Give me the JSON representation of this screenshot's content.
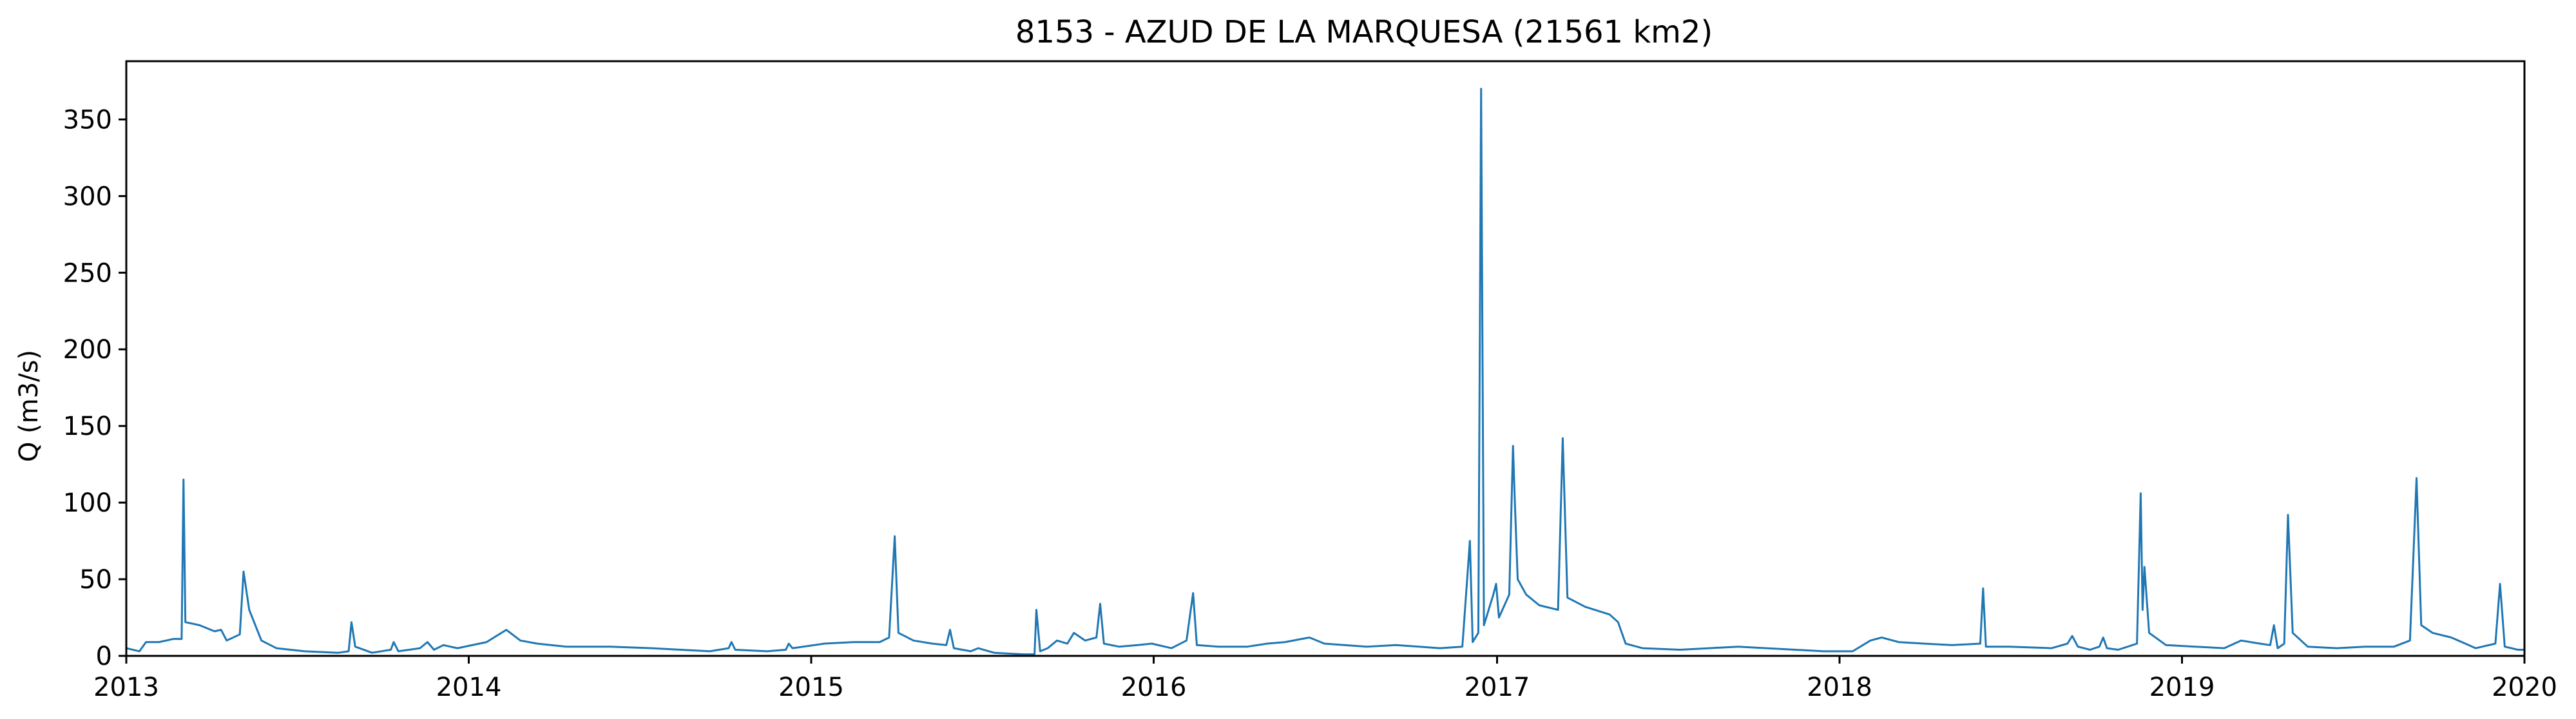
{
  "chart_data": {
    "type": "line",
    "title": "8153 - AZUD DE LA MARQUESA (21561 km2)",
    "xlabel": "",
    "ylabel": "Q (m3/s)",
    "xlim": [
      "2013-01-01",
      "2020-01-01"
    ],
    "ylim": [
      0,
      388
    ],
    "x_ticks": [
      "2013",
      "2014",
      "2015",
      "2016",
      "2017",
      "2018",
      "2019",
      "2020"
    ],
    "y_ticks": [
      0,
      50,
      100,
      150,
      200,
      250,
      300,
      350
    ],
    "grid": false,
    "legend": "none",
    "series": [
      {
        "color": "#1f77b4",
        "points": [
          [
            "2013-01-01",
            5
          ],
          [
            "2013-01-15",
            3
          ],
          [
            "2013-01-22",
            9
          ],
          [
            "2013-02-05",
            9
          ],
          [
            "2013-02-20",
            11
          ],
          [
            "2013-03-01",
            11
          ],
          [
            "2013-03-03",
            115
          ],
          [
            "2013-03-05",
            22
          ],
          [
            "2013-03-20",
            20
          ],
          [
            "2013-04-05",
            16
          ],
          [
            "2013-04-12",
            17
          ],
          [
            "2013-04-18",
            10
          ],
          [
            "2013-05-02",
            14
          ],
          [
            "2013-05-06",
            55
          ],
          [
            "2013-05-12",
            30
          ],
          [
            "2013-05-25",
            10
          ],
          [
            "2013-06-10",
            5
          ],
          [
            "2013-07-10",
            3
          ],
          [
            "2013-08-15",
            2
          ],
          [
            "2013-08-26",
            3
          ],
          [
            "2013-08-29",
            22
          ],
          [
            "2013-09-02",
            6
          ],
          [
            "2013-09-20",
            2
          ],
          [
            "2013-10-10",
            4
          ],
          [
            "2013-10-13",
            9
          ],
          [
            "2013-10-18",
            3
          ],
          [
            "2013-11-10",
            5
          ],
          [
            "2013-11-18",
            9
          ],
          [
            "2013-11-25",
            4
          ],
          [
            "2013-12-05",
            7
          ],
          [
            "2013-12-20",
            5
          ],
          [
            "2014-01-20",
            9
          ],
          [
            "2014-02-10",
            17
          ],
          [
            "2014-02-25",
            10
          ],
          [
            "2014-03-15",
            8
          ],
          [
            "2014-04-15",
            6
          ],
          [
            "2014-06-01",
            6
          ],
          [
            "2014-07-15",
            5
          ],
          [
            "2014-08-15",
            4
          ],
          [
            "2014-09-15",
            3
          ],
          [
            "2014-10-05",
            5
          ],
          [
            "2014-10-08",
            9
          ],
          [
            "2014-10-12",
            4
          ],
          [
            "2014-11-15",
            3
          ],
          [
            "2014-12-05",
            4
          ],
          [
            "2014-12-08",
            8
          ],
          [
            "2014-12-12",
            5
          ],
          [
            "2015-01-15",
            8
          ],
          [
            "2015-02-15",
            9
          ],
          [
            "2015-03-15",
            9
          ],
          [
            "2015-03-25",
            12
          ],
          [
            "2015-03-31",
            78
          ],
          [
            "2015-04-04",
            15
          ],
          [
            "2015-04-20",
            10
          ],
          [
            "2015-05-10",
            8
          ],
          [
            "2015-05-25",
            7
          ],
          [
            "2015-05-29",
            17
          ],
          [
            "2015-06-02",
            5
          ],
          [
            "2015-06-20",
            3
          ],
          [
            "2015-06-28",
            5
          ],
          [
            "2015-07-15",
            2
          ],
          [
            "2015-08-15",
            1
          ],
          [
            "2015-08-27",
            1
          ],
          [
            "2015-08-29",
            30
          ],
          [
            "2015-09-02",
            3
          ],
          [
            "2015-09-10",
            5
          ],
          [
            "2015-09-20",
            10
          ],
          [
            "2015-10-01",
            8
          ],
          [
            "2015-10-08",
            15
          ],
          [
            "2015-10-20",
            10
          ],
          [
            "2015-11-01",
            12
          ],
          [
            "2015-11-05",
            34
          ],
          [
            "2015-11-09",
            8
          ],
          [
            "2015-11-25",
            6
          ],
          [
            "2015-12-15",
            7
          ],
          [
            "2015-12-30",
            8
          ],
          [
            "2016-01-20",
            5
          ],
          [
            "2016-02-05",
            10
          ],
          [
            "2016-02-12",
            41
          ],
          [
            "2016-02-16",
            7
          ],
          [
            "2016-03-10",
            6
          ],
          [
            "2016-04-10",
            6
          ],
          [
            "2016-05-01",
            8
          ],
          [
            "2016-05-20",
            9
          ],
          [
            "2016-06-15",
            12
          ],
          [
            "2016-07-01",
            8
          ],
          [
            "2016-08-15",
            6
          ],
          [
            "2016-09-15",
            7
          ],
          [
            "2016-10-10",
            6
          ],
          [
            "2016-11-01",
            5
          ],
          [
            "2016-11-25",
            6
          ],
          [
            "2016-12-03",
            75
          ],
          [
            "2016-12-06",
            9
          ],
          [
            "2016-12-12",
            15
          ],
          [
            "2016-12-15",
            370
          ],
          [
            "2016-12-18",
            20
          ],
          [
            "2016-12-28",
            40
          ],
          [
            "2016-12-31",
            47
          ],
          [
            "2017-01-03",
            25
          ],
          [
            "2017-01-14",
            40
          ],
          [
            "2017-01-18",
            137
          ],
          [
            "2017-01-20",
            100
          ],
          [
            "2017-01-23",
            50
          ],
          [
            "2017-02-01",
            40
          ],
          [
            "2017-02-15",
            33
          ],
          [
            "2017-03-07",
            30
          ],
          [
            "2017-03-12",
            142
          ],
          [
            "2017-03-17",
            38
          ],
          [
            "2017-04-05",
            32
          ],
          [
            "2017-05-01",
            27
          ],
          [
            "2017-05-10",
            22
          ],
          [
            "2017-05-18",
            8
          ],
          [
            "2017-06-05",
            5
          ],
          [
            "2017-07-15",
            4
          ],
          [
            "2017-08-15",
            5
          ],
          [
            "2017-09-15",
            6
          ],
          [
            "2017-10-15",
            5
          ],
          [
            "2017-11-15",
            4
          ],
          [
            "2017-12-15",
            3
          ],
          [
            "2018-01-15",
            3
          ],
          [
            "2018-02-03",
            10
          ],
          [
            "2018-02-15",
            12
          ],
          [
            "2018-03-05",
            9
          ],
          [
            "2018-04-01",
            8
          ],
          [
            "2018-05-01",
            7
          ],
          [
            "2018-05-31",
            8
          ],
          [
            "2018-06-03",
            44
          ],
          [
            "2018-06-06",
            6
          ],
          [
            "2018-07-01",
            6
          ],
          [
            "2018-08-15",
            5
          ],
          [
            "2018-09-01",
            8
          ],
          [
            "2018-09-06",
            13
          ],
          [
            "2018-09-12",
            6
          ],
          [
            "2018-09-25",
            4
          ],
          [
            "2018-10-05",
            6
          ],
          [
            "2018-10-09",
            12
          ],
          [
            "2018-10-13",
            5
          ],
          [
            "2018-10-25",
            4
          ],
          [
            "2018-11-14",
            8
          ],
          [
            "2018-11-18",
            106
          ],
          [
            "2018-11-20",
            30
          ],
          [
            "2018-11-22",
            58
          ],
          [
            "2018-11-27",
            15
          ],
          [
            "2018-12-15",
            7
          ],
          [
            "2019-01-15",
            6
          ],
          [
            "2019-02-15",
            5
          ],
          [
            "2019-03-05",
            10
          ],
          [
            "2019-03-25",
            8
          ],
          [
            "2019-04-05",
            7
          ],
          [
            "2019-04-09",
            20
          ],
          [
            "2019-04-13",
            5
          ],
          [
            "2019-04-20",
            8
          ],
          [
            "2019-04-24",
            92
          ],
          [
            "2019-04-29",
            15
          ],
          [
            "2019-05-15",
            6
          ],
          [
            "2019-06-15",
            5
          ],
          [
            "2019-07-15",
            6
          ],
          [
            "2019-08-15",
            6
          ],
          [
            "2019-09-01",
            10
          ],
          [
            "2019-09-08",
            116
          ],
          [
            "2019-09-13",
            20
          ],
          [
            "2019-09-25",
            15
          ],
          [
            "2019-10-15",
            12
          ],
          [
            "2019-10-30",
            8
          ],
          [
            "2019-11-10",
            5
          ],
          [
            "2019-12-01",
            8
          ],
          [
            "2019-12-06",
            47
          ],
          [
            "2019-12-11",
            6
          ],
          [
            "2019-12-25",
            4
          ],
          [
            "2020-01-01",
            4
          ]
        ]
      }
    ]
  }
}
